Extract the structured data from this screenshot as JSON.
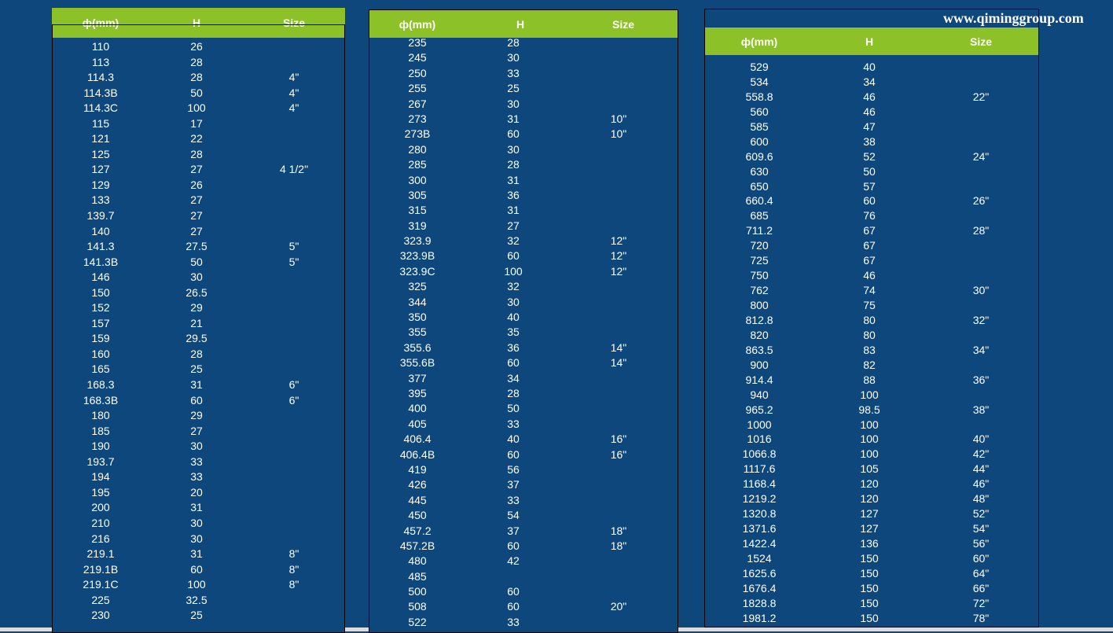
{
  "watermark": "www.qiminggroup.com",
  "headers": {
    "phi": "ф(mm)",
    "h": "H",
    "size": "Size"
  },
  "table1": [
    [
      "110",
      "26",
      ""
    ],
    [
      "113",
      "28",
      ""
    ],
    [
      "114.3",
      "28",
      "4\""
    ],
    [
      "114.3B",
      "50",
      "4\""
    ],
    [
      "114.3C",
      "100",
      "4\""
    ],
    [
      "115",
      "17",
      ""
    ],
    [
      "121",
      "22",
      ""
    ],
    [
      "125",
      "28",
      ""
    ],
    [
      "127",
      "27",
      "4 1/2\""
    ],
    [
      "129",
      "26",
      ""
    ],
    [
      "133",
      "27",
      ""
    ],
    [
      "139.7",
      "27",
      ""
    ],
    [
      "140",
      "27",
      ""
    ],
    [
      "141.3",
      "27.5",
      "5\""
    ],
    [
      "141.3B",
      "50",
      "5\""
    ],
    [
      "146",
      "30",
      ""
    ],
    [
      "150",
      "26.5",
      ""
    ],
    [
      "152",
      "29",
      ""
    ],
    [
      "157",
      "21",
      ""
    ],
    [
      "159",
      "29.5",
      ""
    ],
    [
      "160",
      "28",
      ""
    ],
    [
      "165",
      "25",
      ""
    ],
    [
      "168.3",
      "31",
      "6\""
    ],
    [
      "168.3B",
      "60",
      "6\""
    ],
    [
      "180",
      "29",
      ""
    ],
    [
      "185",
      "27",
      ""
    ],
    [
      "190",
      "30",
      ""
    ],
    [
      "193.7",
      "33",
      ""
    ],
    [
      "194",
      "33",
      ""
    ],
    [
      "195",
      "20",
      ""
    ],
    [
      "200",
      "31",
      ""
    ],
    [
      "210",
      "30",
      ""
    ],
    [
      "216",
      "30",
      ""
    ],
    [
      "219.1",
      "31",
      "8\""
    ],
    [
      "219.1B",
      "60",
      "8\""
    ],
    [
      "219.1C",
      "100",
      "8\""
    ],
    [
      "225",
      "32.5",
      ""
    ],
    [
      "230",
      "25",
      ""
    ]
  ],
  "table2": [
    [
      "235",
      "28",
      ""
    ],
    [
      "245",
      "30",
      ""
    ],
    [
      "250",
      "33",
      ""
    ],
    [
      "255",
      "25",
      ""
    ],
    [
      "267",
      "30",
      ""
    ],
    [
      "273",
      "31",
      "10\""
    ],
    [
      "273B",
      "60",
      "10\""
    ],
    [
      "280",
      "30",
      ""
    ],
    [
      "285",
      "28",
      ""
    ],
    [
      "300",
      "31",
      ""
    ],
    [
      "305",
      "36",
      ""
    ],
    [
      "315",
      "31",
      ""
    ],
    [
      "319",
      "27",
      ""
    ],
    [
      "323.9",
      "32",
      "12\""
    ],
    [
      "323.9B",
      "60",
      "12\""
    ],
    [
      "323.9C",
      "100",
      "12\""
    ],
    [
      "325",
      "32",
      ""
    ],
    [
      "344",
      "30",
      ""
    ],
    [
      "350",
      "40",
      ""
    ],
    [
      "355",
      "35",
      ""
    ],
    [
      "355.6",
      "36",
      "14\""
    ],
    [
      "355.6B",
      "60",
      "14\""
    ],
    [
      "377",
      "34",
      ""
    ],
    [
      "395",
      "28",
      ""
    ],
    [
      "400",
      "50",
      ""
    ],
    [
      "405",
      "33",
      ""
    ],
    [
      "406.4",
      "40",
      "16\""
    ],
    [
      "406.4B",
      "60",
      "16\""
    ],
    [
      "419",
      "56",
      ""
    ],
    [
      "426",
      "37",
      ""
    ],
    [
      "445",
      "33",
      ""
    ],
    [
      "450",
      "54",
      ""
    ],
    [
      "457.2",
      "37",
      "18\""
    ],
    [
      "457.2B",
      "60",
      "18\""
    ],
    [
      "480",
      "42",
      ""
    ],
    [
      "485",
      "",
      ""
    ],
    [
      "500",
      "60",
      ""
    ],
    [
      "508",
      "60",
      "20\""
    ],
    [
      "522",
      "33",
      ""
    ]
  ],
  "table3": [
    [
      "529",
      "40",
      ""
    ],
    [
      "534",
      "34",
      ""
    ],
    [
      "558.8",
      "46",
      "22\""
    ],
    [
      "560",
      "46",
      ""
    ],
    [
      "585",
      "47",
      ""
    ],
    [
      "600",
      "38",
      ""
    ],
    [
      "609.6",
      "52",
      "24\""
    ],
    [
      "630",
      "50",
      ""
    ],
    [
      "650",
      "57",
      ""
    ],
    [
      "660.4",
      "60",
      "26\""
    ],
    [
      "685",
      "76",
      ""
    ],
    [
      "711.2",
      "67",
      "28\""
    ],
    [
      "720",
      "67",
      ""
    ],
    [
      "725",
      "67",
      ""
    ],
    [
      "750",
      "46",
      ""
    ],
    [
      "762",
      "74",
      "30\""
    ],
    [
      "800",
      "75",
      ""
    ],
    [
      "812.8",
      "80",
      "32\""
    ],
    [
      "820",
      "80",
      ""
    ],
    [
      "863.5",
      "83",
      "34\""
    ],
    [
      "900",
      "82",
      ""
    ],
    [
      "914.4",
      "88",
      "36\""
    ],
    [
      "940",
      "100",
      ""
    ],
    [
      "965.2",
      "98.5",
      "38\""
    ],
    [
      "1000",
      "100",
      ""
    ],
    [
      "1016",
      "100",
      "40\""
    ],
    [
      "1066.8",
      "100",
      "42\""
    ],
    [
      "1117.6",
      "105",
      "44\""
    ],
    [
      "1168.4",
      "120",
      "46\""
    ],
    [
      "1219.2",
      "120",
      "48\""
    ],
    [
      "1320.8",
      "127",
      "52\""
    ],
    [
      "1371.6",
      "127",
      "54\""
    ],
    [
      "1422.4",
      "136",
      "56\""
    ],
    [
      "1524",
      "150",
      "60\""
    ],
    [
      "1625.6",
      "150",
      "64\""
    ],
    [
      "1676.4",
      "150",
      "66\""
    ],
    [
      "1828.8",
      "150",
      "72\""
    ],
    [
      "1981.2",
      "150",
      "78\""
    ]
  ]
}
